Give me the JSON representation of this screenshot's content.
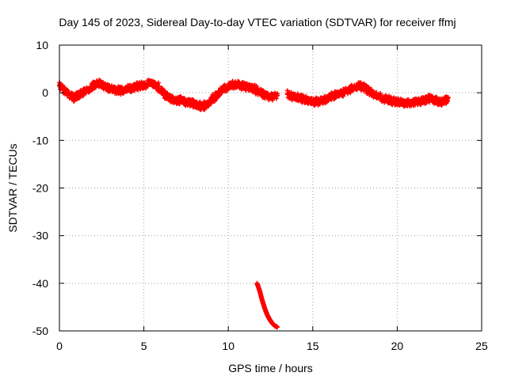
{
  "chart_data": {
    "type": "scatter",
    "title": "Day 145 of 2023, Sidereal Day-to-day VTEC variation (SDTVAR) for receiver ffmj",
    "xlabel": "GPS time / hours",
    "ylabel": "SDTVAR / TECUs",
    "xlim": [
      0,
      25
    ],
    "ylim": [
      -50,
      10
    ],
    "x_ticks": [
      0,
      5,
      10,
      15,
      20,
      25
    ],
    "y_ticks": [
      -50,
      -40,
      -30,
      -20,
      -10,
      0,
      10
    ],
    "grid": true,
    "marker": "plus",
    "color": "#ff0000",
    "series": [
      {
        "name": "main band",
        "x": [
          0.0,
          0.3,
          0.6,
          0.9,
          1.2,
          1.5,
          1.8,
          2.1,
          2.4,
          2.7,
          3.0,
          3.3,
          3.6,
          3.9,
          4.2,
          4.5,
          4.8,
          5.1,
          5.4,
          5.7,
          6.0,
          6.3,
          6.6,
          6.9,
          7.2,
          7.5,
          7.8,
          8.1,
          8.4,
          8.7,
          9.0,
          9.3,
          9.6,
          9.9,
          10.2,
          10.5,
          10.8,
          11.1,
          11.4,
          11.7,
          12.0,
          12.3,
          12.6,
          12.9,
          13.2,
          13.5,
          13.8,
          14.1,
          14.4,
          14.7,
          15.0,
          15.3,
          15.6,
          15.9,
          16.2,
          16.5,
          16.8,
          17.1,
          17.4,
          17.7,
          18.0,
          18.3,
          18.6,
          18.9,
          19.2,
          19.5,
          19.8,
          20.1,
          20.4,
          20.7,
          21.0,
          21.3,
          21.6,
          21.9,
          22.2,
          22.5,
          22.8,
          23.0
        ],
        "y": [
          1.5,
          0.5,
          -0.5,
          -1.0,
          -0.6,
          0.3,
          1.0,
          1.6,
          1.9,
          1.4,
          0.8,
          0.5,
          0.4,
          0.6,
          0.9,
          1.2,
          1.4,
          1.8,
          2.0,
          1.6,
          0.5,
          -0.5,
          -1.2,
          -1.6,
          -1.6,
          -1.9,
          -2.1,
          -2.5,
          -2.9,
          -2.6,
          -1.6,
          -0.6,
          0.4,
          1.1,
          1.6,
          1.7,
          1.5,
          1.3,
          1.0,
          0.4,
          -0.2,
          -0.6,
          -0.8,
          -0.5,
          null,
          -0.2,
          -0.8,
          -1.0,
          -1.2,
          -1.6,
          -1.8,
          -1.9,
          -1.6,
          -1.1,
          -0.6,
          -0.2,
          0.1,
          0.5,
          1.0,
          1.5,
          1.2,
          0.5,
          -0.3,
          -0.8,
          -1.2,
          -1.6,
          -1.8,
          -2.0,
          -2.2,
          -2.1,
          -2.0,
          -1.8,
          -1.5,
          -1.2,
          -1.5,
          -1.9,
          -1.7,
          -1.2
        ]
      },
      {
        "name": "outlier drop",
        "x": [
          11.7,
          11.85,
          12.0,
          12.15,
          12.3,
          12.45,
          12.6,
          12.75,
          12.9
        ],
        "y": [
          -40.0,
          -41.5,
          -43.5,
          -45.2,
          -46.6,
          -47.6,
          -48.4,
          -48.9,
          -49.2
        ]
      }
    ]
  }
}
